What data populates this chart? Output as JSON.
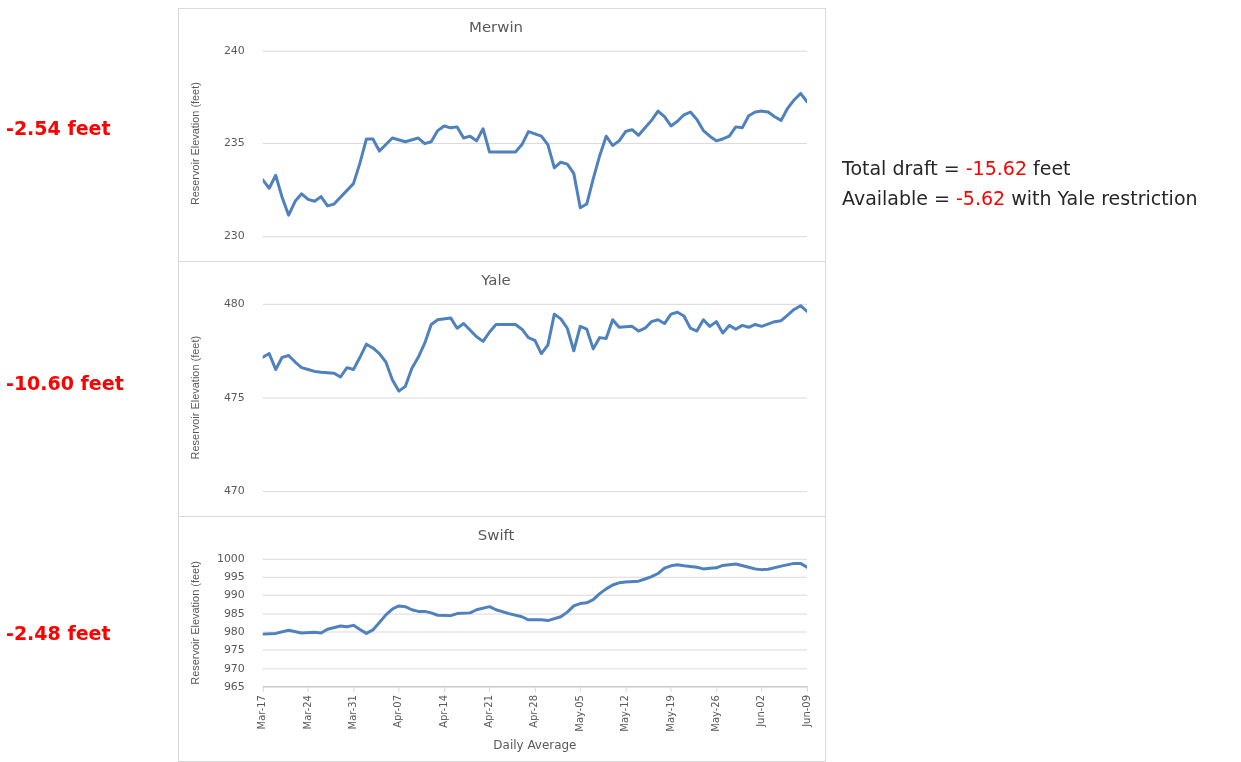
{
  "chart_data": [
    {
      "type": "line",
      "title": "Merwin",
      "ylabel": "Reservoir Elevation (feet)",
      "color": "#4f81bd",
      "grid": "y",
      "tick_labels": "y",
      "marker": "none",
      "annotations": [
        "-2.54 feet",
        "Total draft = -15.62 feet",
        "Available = -5.62 with Yale restriction"
      ],
      "xlim": [
        "--03-17",
        "--06-09"
      ],
      "xticks": [
        {
          "value": "--03-17",
          "label": "Mar-17"
        },
        {
          "value": "--03-24",
          "label": "Mar-24"
        },
        {
          "value": "--03-31",
          "label": "Mar-31"
        },
        {
          "value": "--04-07",
          "label": "Apr-07"
        },
        {
          "value": "--04-14",
          "label": "Apr-14"
        },
        {
          "value": "--04-21",
          "label": "Apr-21"
        },
        {
          "value": "--04-28",
          "label": "Apr-28"
        },
        {
          "value": "--05-05",
          "label": "May-05"
        },
        {
          "value": "--05-12",
          "label": "May-12"
        },
        {
          "value": "--05-19",
          "label": "May-19"
        },
        {
          "value": "--05-26",
          "label": "May-26"
        },
        {
          "value": "--06-02",
          "label": "Jun-02"
        },
        {
          "value": "--06-09",
          "label": "Jun-09"
        }
      ],
      "ylim": [
        230,
        240
      ],
      "yticks": [
        230,
        235,
        240
      ],
      "x": [
        "--03-17",
        "--03-18",
        "--03-19",
        "--03-20",
        "--03-21",
        "--03-22",
        "--03-23",
        "--03-24",
        "--03-25",
        "--03-26",
        "--03-27",
        "--03-28",
        "--03-31",
        "--04-01",
        "--04-02",
        "--04-03",
        "--04-04",
        "--04-06",
        "--04-08",
        "--04-10",
        "--04-11",
        "--04-12",
        "--04-13",
        "--04-14",
        "--04-15",
        "--04-16",
        "--04-17",
        "--04-18",
        "--04-19",
        "--04-20",
        "--04-21",
        "--04-25",
        "--04-26",
        "--04-27",
        "--04-29",
        "--04-30",
        "--05-01",
        "--05-02",
        "--05-03",
        "--05-04",
        "--05-05",
        "--05-06",
        "--05-07",
        "--05-08",
        "--05-09",
        "--05-10",
        "--05-11",
        "--05-12",
        "--05-13",
        "--05-14",
        "--05-15",
        "--05-16",
        "--05-17",
        "--05-18",
        "--05-19",
        "--05-20",
        "--05-21",
        "--05-22",
        "--05-23",
        "--05-24",
        "--05-25",
        "--05-26",
        "--05-27",
        "--05-28",
        "--05-29",
        "--05-30",
        "--05-31",
        "--06-01",
        "--06-02",
        "--06-03",
        "--06-04",
        "--06-05",
        "--06-06",
        "--06-07",
        "--06-08",
        "--06-09"
      ],
      "values": [
        233.05,
        232.6,
        233.3,
        232.1,
        231.15,
        231.9,
        232.3,
        232.0,
        231.9,
        232.15,
        231.65,
        231.75,
        232.85,
        233.95,
        235.25,
        235.25,
        234.6,
        235.3,
        235.1,
        235.3,
        235.0,
        235.1,
        235.7,
        235.95,
        235.85,
        235.9,
        235.3,
        235.4,
        235.15,
        235.8,
        234.55,
        234.55,
        234.95,
        235.65,
        235.4,
        234.95,
        233.7,
        234.0,
        233.9,
        233.4,
        231.55,
        231.75,
        233.1,
        234.35,
        235.4,
        234.9,
        235.15,
        235.65,
        235.75,
        235.45,
        235.85,
        236.25,
        236.75,
        236.45,
        235.95,
        236.2,
        236.55,
        236.7,
        236.3,
        235.7,
        235.4,
        235.15,
        235.25,
        235.4,
        235.9,
        235.85,
        236.5,
        236.7,
        236.75,
        236.7,
        236.45,
        236.25,
        236.9,
        237.35,
        237.7,
        237.25
      ]
    },
    {
      "type": "line",
      "title": "Yale",
      "ylabel": "Reservoir Elevation (feet)",
      "color": "#4f81bd",
      "grid": "y",
      "tick_labels": "y",
      "marker": "none",
      "annotations": [
        "-10.60 feet"
      ],
      "xlim": [
        "--03-17",
        "--06-09"
      ],
      "xticks": [
        {
          "value": "--03-17",
          "label": "Mar-17"
        },
        {
          "value": "--03-24",
          "label": "Mar-24"
        },
        {
          "value": "--03-31",
          "label": "Mar-31"
        },
        {
          "value": "--04-07",
          "label": "Apr-07"
        },
        {
          "value": "--04-14",
          "label": "Apr-14"
        },
        {
          "value": "--04-21",
          "label": "Apr-21"
        },
        {
          "value": "--04-28",
          "label": "Apr-28"
        },
        {
          "value": "--05-05",
          "label": "May-05"
        },
        {
          "value": "--05-12",
          "label": "May-12"
        },
        {
          "value": "--05-19",
          "label": "May-19"
        },
        {
          "value": "--05-26",
          "label": "May-26"
        },
        {
          "value": "--06-02",
          "label": "Jun-02"
        },
        {
          "value": "--06-09",
          "label": "Jun-09"
        }
      ],
      "ylim": [
        470,
        480
      ],
      "yticks": [
        470,
        475,
        480
      ],
      "x": [
        "--03-17",
        "--03-18",
        "--03-19",
        "--03-20",
        "--03-21",
        "--03-22",
        "--03-23",
        "--03-24",
        "--03-25",
        "--03-26",
        "--03-28",
        "--03-29",
        "--03-30",
        "--03-31",
        "--04-01",
        "--04-02",
        "--04-03",
        "--04-04",
        "--04-05",
        "--04-06",
        "--04-07",
        "--04-08",
        "--04-09",
        "--04-10",
        "--04-11",
        "--04-12",
        "--04-13",
        "--04-15",
        "--04-16",
        "--04-17",
        "--04-19",
        "--04-20",
        "--04-21",
        "--04-22",
        "--04-25",
        "--04-26",
        "--04-27",
        "--04-28",
        "--04-29",
        "--04-30",
        "--05-01",
        "--05-02",
        "--05-03",
        "--05-04",
        "--05-05",
        "--05-06",
        "--05-07",
        "--05-08",
        "--05-09",
        "--05-10",
        "--05-11",
        "--05-13",
        "--05-14",
        "--05-15",
        "--05-16",
        "--05-17",
        "--05-18",
        "--05-19",
        "--05-20",
        "--05-21",
        "--05-22",
        "--05-23",
        "--05-24",
        "--05-25",
        "--05-26",
        "--05-27",
        "--05-28",
        "--05-29",
        "--05-30",
        "--05-31",
        "--06-01",
        "--06-02",
        "--06-04",
        "--06-05",
        "--06-06",
        "--06-07",
        "--06-08",
        "--06-09"
      ],
      "values": [
        477.15,
        477.35,
        476.5,
        477.15,
        477.25,
        476.9,
        476.6,
        476.5,
        476.4,
        476.35,
        476.3,
        476.1,
        476.6,
        476.5,
        477.15,
        477.85,
        477.65,
        477.35,
        476.9,
        475.95,
        475.35,
        475.6,
        476.55,
        477.15,
        477.9,
        478.9,
        479.15,
        479.25,
        478.7,
        478.95,
        478.25,
        478.0,
        478.5,
        478.9,
        478.9,
        478.65,
        478.2,
        478.05,
        477.35,
        477.8,
        479.45,
        479.2,
        478.7,
        477.5,
        478.8,
        478.65,
        477.6,
        478.2,
        478.15,
        479.15,
        478.75,
        478.8,
        478.55,
        478.7,
        479.05,
        479.15,
        478.95,
        479.45,
        479.55,
        479.35,
        478.7,
        478.55,
        479.15,
        478.8,
        479.05,
        478.45,
        478.85,
        478.65,
        478.85,
        478.75,
        478.9,
        478.8,
        479.05,
        479.1,
        479.4,
        479.7,
        479.9,
        479.6
      ]
    },
    {
      "type": "line",
      "title": "Swift",
      "xlabel": "Daily Average",
      "ylabel": "Reservoir Elevation (feet)",
      "color": "#4f81bd",
      "grid": "y",
      "marker": "none",
      "annotations": [
        "-2.48 feet"
      ],
      "xlim": [
        "--03-17",
        "--06-09"
      ],
      "xticks": [
        {
          "value": "--03-17",
          "label": "Mar-17"
        },
        {
          "value": "--03-24",
          "label": "Mar-24"
        },
        {
          "value": "--03-31",
          "label": "Mar-31"
        },
        {
          "value": "--04-07",
          "label": "Apr-07"
        },
        {
          "value": "--04-14",
          "label": "Apr-14"
        },
        {
          "value": "--04-21",
          "label": "Apr-21"
        },
        {
          "value": "--04-28",
          "label": "Apr-28"
        },
        {
          "value": "--05-05",
          "label": "May-05"
        },
        {
          "value": "--05-12",
          "label": "May-12"
        },
        {
          "value": "--05-19",
          "label": "May-19"
        },
        {
          "value": "--05-26",
          "label": "May-26"
        },
        {
          "value": "--06-02",
          "label": "Jun-02"
        },
        {
          "value": "--06-09",
          "label": "Jun-09"
        }
      ],
      "ylim": [
        965,
        1000
      ],
      "yticks": [
        965,
        970,
        975,
        980,
        985,
        990,
        995,
        1000
      ],
      "x": [
        "--03-17",
        "--03-19",
        "--03-21",
        "--03-23",
        "--03-25",
        "--03-26",
        "--03-27",
        "--03-29",
        "--03-30",
        "--03-31",
        "--04-01",
        "--04-02",
        "--04-03",
        "--04-04",
        "--04-05",
        "--04-06",
        "--04-07",
        "--04-08",
        "--04-09",
        "--04-10",
        "--04-11",
        "--04-12",
        "--04-13",
        "--04-15",
        "--04-16",
        "--04-18",
        "--04-19",
        "--04-21",
        "--04-22",
        "--04-24",
        "--04-26",
        "--04-27",
        "--04-29",
        "--04-30",
        "--05-02",
        "--05-03",
        "--05-04",
        "--05-05",
        "--05-06",
        "--05-07",
        "--05-08",
        "--05-09",
        "--05-10",
        "--05-11",
        "--05-12",
        "--05-14",
        "--05-15",
        "--05-16",
        "--05-17",
        "--05-18",
        "--05-19",
        "--05-20",
        "--05-21",
        "--05-23",
        "--05-24",
        "--05-25",
        "--05-26",
        "--05-27",
        "--05-29",
        "--05-31",
        "--06-01",
        "--06-02",
        "--06-03",
        "--06-05",
        "--06-07",
        "--06-08",
        "--06-09"
      ],
      "values": [
        979.45,
        979.65,
        980.5,
        979.75,
        979.95,
        979.75,
        980.8,
        981.65,
        981.45,
        981.85,
        980.7,
        979.65,
        980.6,
        982.6,
        984.7,
        986.3,
        987.15,
        986.95,
        986.1,
        985.65,
        985.65,
        985.25,
        984.6,
        984.5,
        985.05,
        985.25,
        986.1,
        986.95,
        986.1,
        985.05,
        984.2,
        983.35,
        983.35,
        983.15,
        984.2,
        985.45,
        987.15,
        987.8,
        988.0,
        988.85,
        990.5,
        991.8,
        992.85,
        993.45,
        993.65,
        993.9,
        994.5,
        995.15,
        996.0,
        997.45,
        998.1,
        998.4,
        998.1,
        997.7,
        997.25,
        997.45,
        997.55,
        998.2,
        998.6,
        997.7,
        997.25,
        997.05,
        997.15,
        998.0,
        998.75,
        998.75,
        997.7
      ]
    }
  ]
}
